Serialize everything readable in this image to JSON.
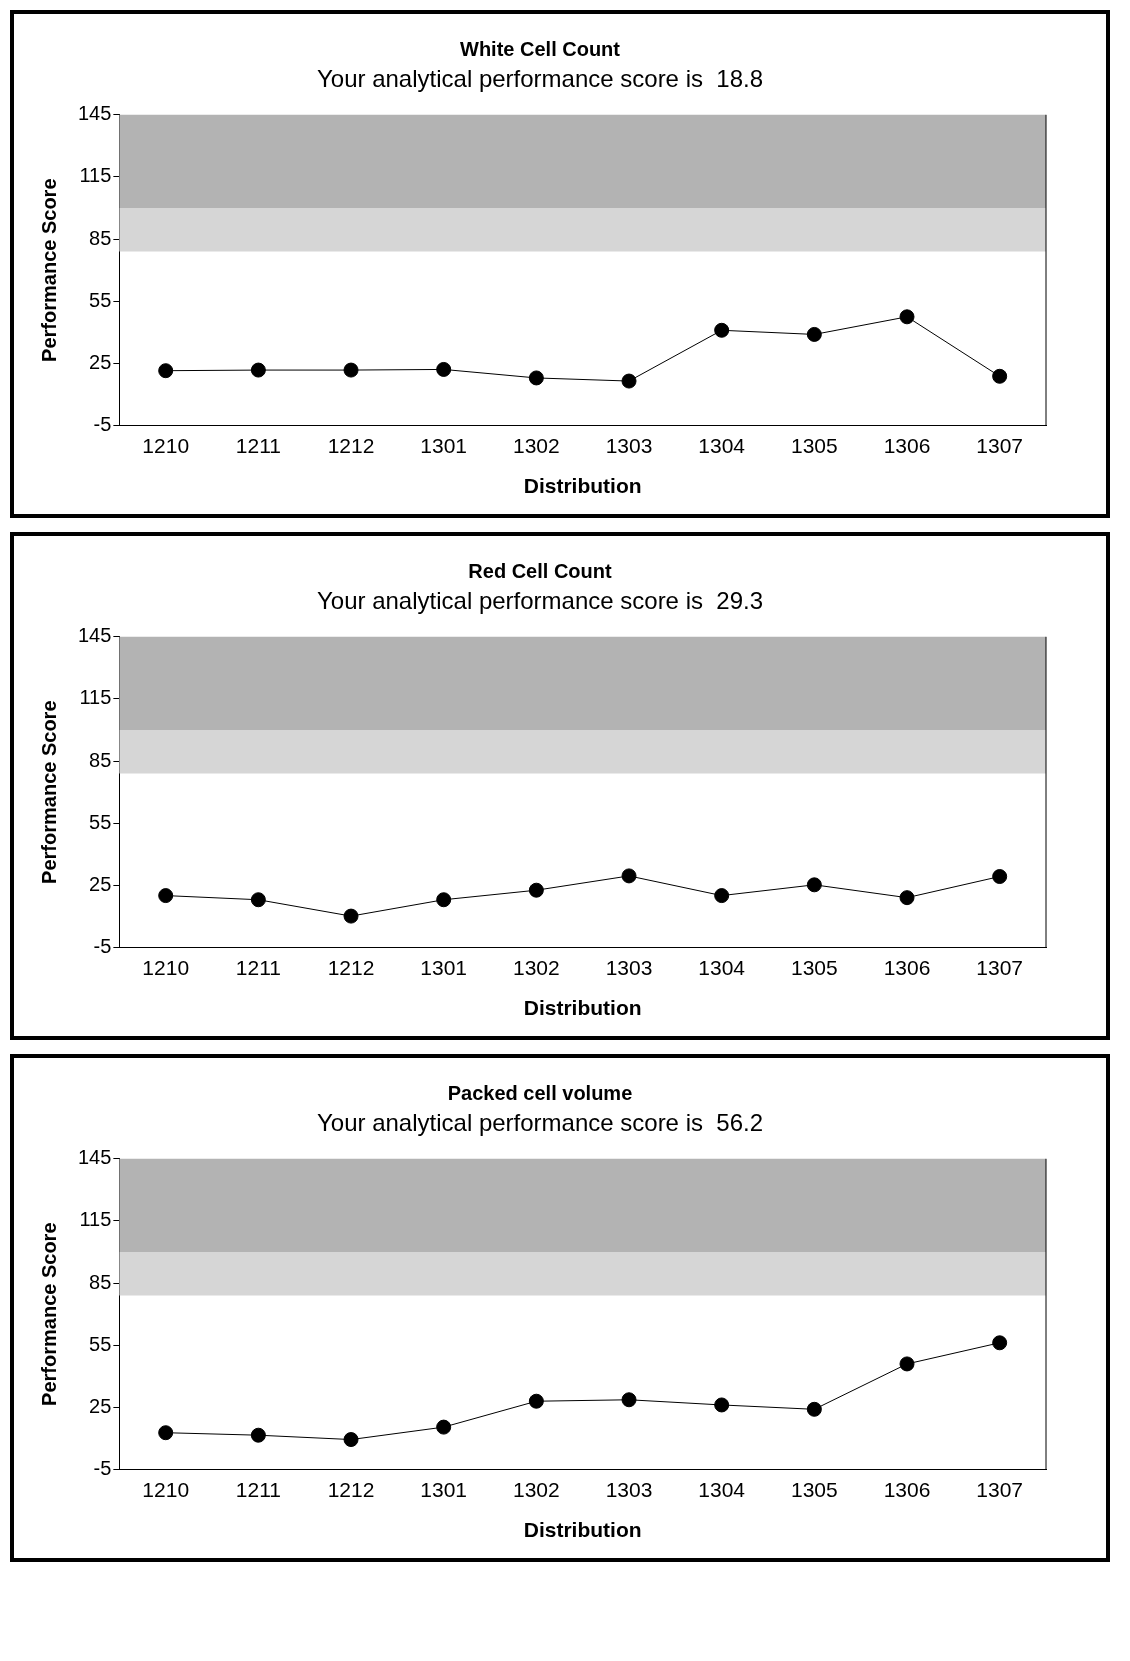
{
  "chart_data": [
    {
      "type": "line",
      "title": "White Cell Count",
      "subtitle": "Your analytical performance score is  18.8",
      "xlabel": "Distribution",
      "ylabel": "Performance Score",
      "categories": [
        "1210",
        "1211",
        "1212",
        "1301",
        "1302",
        "1303",
        "1304",
        "1305",
        "1306",
        "1307"
      ],
      "series": [
        {
          "color": "#000000",
          "values": [
            21.5,
            21.8,
            21.8,
            22.1,
            18,
            16.5,
            41,
            39,
            47.5,
            18.8
          ]
        }
      ],
      "ylim": [
        -5,
        145
      ],
      "yticks": [
        -5,
        25,
        55,
        85,
        115,
        145
      ],
      "marker": "circle",
      "grid": false,
      "legend": false,
      "bands": [
        {
          "axis": "y",
          "from": 100,
          "to": 145,
          "color": "#b3b3b3"
        },
        {
          "axis": "y",
          "from": 79,
          "to": 100,
          "color": "#d6d6d6"
        }
      ]
    },
    {
      "type": "line",
      "title": "Red Cell Count",
      "subtitle": "Your analytical performance score is  29.3",
      "xlabel": "Distribution",
      "ylabel": "Performance Score",
      "categories": [
        "1210",
        "1211",
        "1212",
        "1301",
        "1302",
        "1303",
        "1304",
        "1305",
        "1306",
        "1307"
      ],
      "series": [
        {
          "color": "#000000",
          "values": [
            20.1,
            18.1,
            10.2,
            18.1,
            22.7,
            29.6,
            20.1,
            25.3,
            19.1,
            29.3
          ]
        }
      ],
      "ylim": [
        -5,
        145
      ],
      "yticks": [
        -5,
        25,
        55,
        85,
        115,
        145
      ],
      "marker": "circle",
      "grid": false,
      "legend": false,
      "bands": [
        {
          "axis": "y",
          "from": 100,
          "to": 145,
          "color": "#b3b3b3"
        },
        {
          "axis": "y",
          "from": 79,
          "to": 100,
          "color": "#d6d6d6"
        }
      ]
    },
    {
      "type": "line",
      "title": "Packed cell volume",
      "subtitle": "Your analytical performance score is  56.2",
      "xlabel": "Distribution",
      "ylabel": "Performance Score",
      "categories": [
        "1210",
        "1211",
        "1212",
        "1301",
        "1302",
        "1303",
        "1304",
        "1305",
        "1306",
        "1307"
      ],
      "series": [
        {
          "color": "#000000",
          "values": [
            12.8,
            11.6,
            9.5,
            15.5,
            28,
            28.7,
            26.2,
            24.1,
            46,
            56.2
          ]
        }
      ],
      "ylim": [
        -5,
        145
      ],
      "yticks": [
        -5,
        25,
        55,
        85,
        115,
        145
      ],
      "marker": "circle",
      "grid": false,
      "legend": false,
      "bands": [
        {
          "axis": "y",
          "from": 100,
          "to": 145,
          "color": "#b3b3b3"
        },
        {
          "axis": "y",
          "from": 79,
          "to": 100,
          "color": "#d6d6d6"
        }
      ]
    }
  ]
}
